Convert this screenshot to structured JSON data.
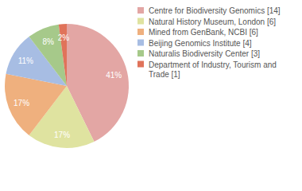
{
  "chart_data": {
    "type": "pie",
    "categories": [
      "Centre for Biodiversity Genomics [14]",
      "Natural History Museum, London [6]",
      "Mined from GenBank, NCBI [6]",
      "Beijing Genomics Institute [4]",
      "Naturalis Biodiversity Center [3]",
      "Department of Industry, Tourism and Trade [1]"
    ],
    "values": [
      41,
      17,
      17,
      11,
      8,
      2
    ],
    "value_labels": [
      "41%",
      "17%",
      "17%",
      "11%",
      "8%",
      "2%"
    ],
    "colors": [
      "#e3a6a4",
      "#dfe3a0",
      "#efb07e",
      "#a7bde3",
      "#a6c98a",
      "#e0735a"
    ],
    "data_labels": true
  }
}
